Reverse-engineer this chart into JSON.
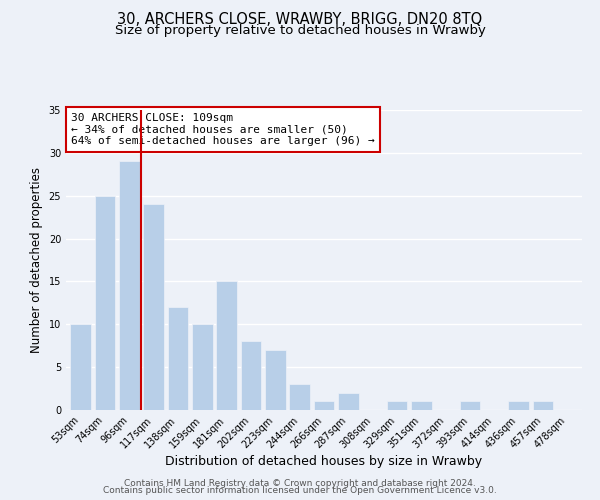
{
  "title": "30, ARCHERS CLOSE, WRAWBY, BRIGG, DN20 8TQ",
  "subtitle": "Size of property relative to detached houses in Wrawby",
  "xlabel": "Distribution of detached houses by size in Wrawby",
  "ylabel": "Number of detached properties",
  "bar_labels": [
    "53sqm",
    "74sqm",
    "96sqm",
    "117sqm",
    "138sqm",
    "159sqm",
    "181sqm",
    "202sqm",
    "223sqm",
    "244sqm",
    "266sqm",
    "287sqm",
    "308sqm",
    "329sqm",
    "351sqm",
    "372sqm",
    "393sqm",
    "414sqm",
    "436sqm",
    "457sqm",
    "478sqm"
  ],
  "bar_values": [
    10,
    25,
    29,
    24,
    12,
    10,
    15,
    8,
    7,
    3,
    1,
    2,
    0,
    1,
    1,
    0,
    1,
    0,
    1,
    1,
    0
  ],
  "bar_color": "#b8cfe8",
  "vline_color": "#cc0000",
  "vline_position": 2.5,
  "annotation_title": "30 ARCHERS CLOSE: 109sqm",
  "annotation_line1": "← 34% of detached houses are smaller (50)",
  "annotation_line2": "64% of semi-detached houses are larger (96) →",
  "annotation_box_facecolor": "#ffffff",
  "annotation_box_edgecolor": "#cc0000",
  "ylim": [
    0,
    35
  ],
  "yticks": [
    0,
    5,
    10,
    15,
    20,
    25,
    30,
    35
  ],
  "footer1": "Contains HM Land Registry data © Crown copyright and database right 2024.",
  "footer2": "Contains public sector information licensed under the Open Government Licence v3.0.",
  "background_color": "#edf1f8",
  "grid_color": "#ffffff",
  "title_fontsize": 10.5,
  "subtitle_fontsize": 9.5,
  "xlabel_fontsize": 9,
  "ylabel_fontsize": 8.5,
  "tick_fontsize": 7,
  "annotation_fontsize": 8,
  "footer_fontsize": 6.5
}
